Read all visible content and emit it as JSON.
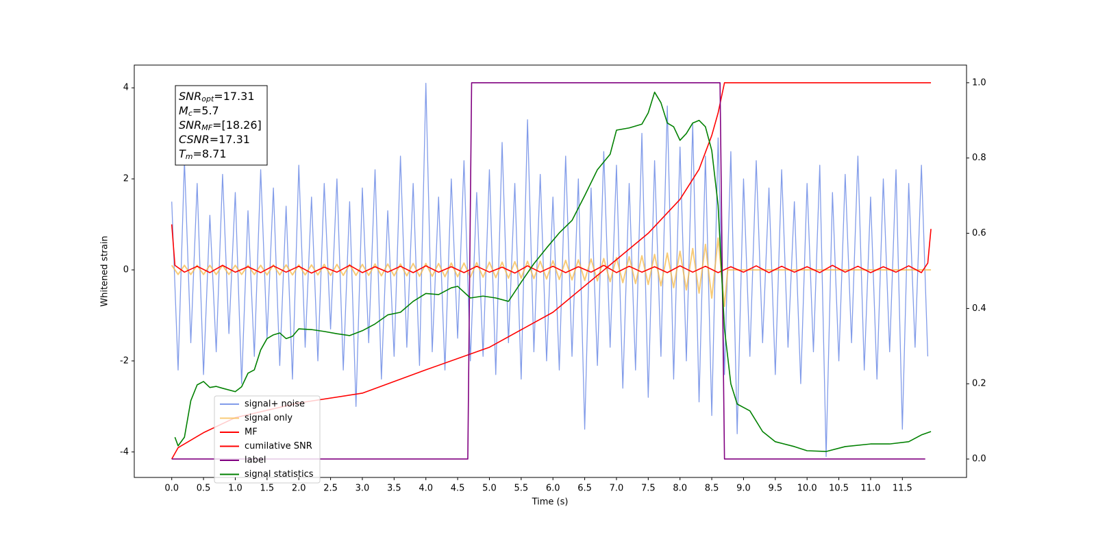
{
  "chart_data": {
    "type": "line",
    "xlabel": "Time (s)",
    "ylabel": "Whitened strain",
    "xlim": [
      -0.59,
      12.51
    ],
    "ylim": [
      -4.56,
      4.5
    ],
    "y2lim": [
      -0.049,
      1.047
    ],
    "xticks": [
      {
        "value": 0,
        "label": "0.0"
      },
      0.5,
      {
        "value": 1,
        "label": "1.0"
      },
      1.5,
      {
        "value": 2,
        "label": "2.0"
      },
      2.5,
      {
        "value": 3,
        "label": "3.0"
      },
      3.5,
      {
        "value": 4,
        "label": "4.0"
      },
      4.5,
      {
        "value": 5,
        "label": "5.0"
      },
      5.5,
      {
        "value": 6,
        "label": "6.0"
      },
      6.5,
      {
        "value": 7,
        "label": "7.0"
      },
      7.5,
      {
        "value": 8,
        "label": "8.0"
      },
      8.5,
      {
        "value": 9,
        "label": "9.0"
      },
      9.5,
      {
        "value": 10,
        "label": "10.0"
      },
      10.5,
      {
        "value": 11,
        "label": "11.0"
      },
      11.5
    ],
    "yticks": [
      -4,
      -2,
      0,
      2,
      4
    ],
    "y2ticks": [
      {
        "value": 0,
        "label": "0.0"
      },
      0.2,
      0.4,
      0.6,
      0.8,
      {
        "value": 1,
        "label": "1.0"
      }
    ],
    "legend": "lower left",
    "annotations": [
      {
        "base": "SNR",
        "sub": "opt",
        "text": "=17.31"
      },
      {
        "base": "M",
        "sub": "c",
        "text": "=5.7"
      },
      {
        "base": "SNR",
        "sub": "MF",
        "text": "=[18.26]"
      },
      {
        "base": "CSNR",
        "text": "=17.31"
      },
      {
        "base": "T",
        "sub": "m",
        "text": "=8.71"
      }
    ],
    "series": [
      {
        "name": "signal+ noise",
        "color": "#7a96e8",
        "x": [
          0,
          0.1,
          0.2,
          0.3,
          0.4,
          0.5,
          0.6,
          0.7,
          0.8,
          0.9,
          1,
          1.1,
          1.2,
          1.3,
          1.4,
          1.5,
          1.6,
          1.7,
          1.8,
          1.9,
          2,
          2.1,
          2.2,
          2.3,
          2.4,
          2.5,
          2.6,
          2.7,
          2.8,
          2.9,
          3,
          3.1,
          3.2,
          3.3,
          3.4,
          3.5,
          3.6,
          3.7,
          3.8,
          3.9,
          4,
          4.1,
          4.2,
          4.3,
          4.4,
          4.5,
          4.6,
          4.7,
          4.8,
          4.9,
          5,
          5.1,
          5.2,
          5.3,
          5.4,
          5.5,
          5.6,
          5.7,
          5.8,
          5.9,
          6,
          6.1,
          6.2,
          6.3,
          6.4,
          6.5,
          6.6,
          6.7,
          6.8,
          6.9,
          7,
          7.1,
          7.2,
          7.3,
          7.4,
          7.5,
          7.6,
          7.7,
          7.8,
          7.9,
          8,
          8.1,
          8.2,
          8.3,
          8.4,
          8.5,
          8.6,
          8.7,
          8.8,
          8.9,
          9,
          9.1,
          9.2,
          9.3,
          9.4,
          9.5,
          9.6,
          9.7,
          9.8,
          9.9,
          10,
          10.1,
          10.2,
          10.3,
          10.4,
          10.5,
          10.6,
          10.7,
          10.8,
          10.9,
          11,
          11.1,
          11.2,
          11.3,
          11.4,
          11.5,
          11.6,
          11.7,
          11.8,
          11.9
        ],
        "values": [
          1.5,
          -2.2,
          2.4,
          -1.6,
          1.9,
          -2.3,
          1.2,
          -1.8,
          2.1,
          -1.4,
          1.7,
          -2.5,
          1.3,
          -1.9,
          2.2,
          -1.5,
          1.8,
          -2.1,
          1.4,
          -2.4,
          2.3,
          -1.7,
          1.6,
          -2.0,
          1.9,
          -1.3,
          2.0,
          -2.2,
          1.5,
          -3.0,
          1.8,
          -1.6,
          2.2,
          -2.4,
          1.3,
          -1.9,
          2.5,
          -1.7,
          1.9,
          -2.1,
          4.1,
          -1.8,
          1.6,
          -2.2,
          2.0,
          -1.5,
          2.4,
          -2.0,
          1.7,
          -1.9,
          2.2,
          -2.3,
          2.8,
          -1.6,
          1.9,
          -2.4,
          3.3,
          -1.8,
          2.1,
          -2.0,
          1.6,
          -2.2,
          2.5,
          -1.9,
          2.0,
          -3.5,
          1.8,
          -2.1,
          2.6,
          -1.7,
          2.3,
          -2.6,
          1.9,
          -2.2,
          3.0,
          -2.8,
          2.4,
          -1.9,
          3.6,
          -2.4,
          2.7,
          -2.0,
          3.2,
          -2.9,
          2.5,
          -3.2,
          2.9,
          -2.3,
          2.6,
          -3.6,
          2.0,
          -1.9,
          2.4,
          -1.6,
          1.8,
          -2.3,
          2.2,
          -1.7,
          1.5,
          -2.5,
          1.9,
          -1.8,
          2.3,
          -4.1,
          1.7,
          -2.0,
          2.1,
          -1.6,
          2.5,
          -2.2,
          1.6,
          -2.4,
          2.0,
          -1.8,
          2.2,
          -3.5,
          1.9,
          -1.7,
          2.3,
          -1.9
        ]
      },
      {
        "name": "signal only",
        "color": "#f5b94a",
        "x": [
          0,
          0.1,
          0.2,
          0.3,
          0.4,
          0.5,
          0.6,
          0.7,
          0.8,
          0.9,
          1,
          1.1,
          1.2,
          1.3,
          1.4,
          1.5,
          1.6,
          1.7,
          1.8,
          1.9,
          2,
          2.1,
          2.2,
          2.3,
          2.4,
          2.5,
          2.6,
          2.7,
          2.8,
          2.9,
          3,
          3.1,
          3.2,
          3.3,
          3.4,
          3.5,
          3.6,
          3.7,
          3.8,
          3.9,
          4,
          4.1,
          4.2,
          4.3,
          4.4,
          4.5,
          4.6,
          4.7,
          4.8,
          4.9,
          5,
          5.1,
          5.2,
          5.3,
          5.4,
          5.5,
          5.6,
          5.7,
          5.8,
          5.9,
          6,
          6.1,
          6.2,
          6.3,
          6.4,
          6.5,
          6.6,
          6.7,
          6.8,
          6.9,
          7,
          7.1,
          7.2,
          7.3,
          7.4,
          7.5,
          7.6,
          7.7,
          7.8,
          7.9,
          8,
          8.1,
          8.2,
          8.3,
          8.4,
          8.5,
          8.6,
          8.7,
          8.75,
          11.95
        ],
        "values": [
          0.1,
          -0.1,
          0.1,
          -0.1,
          0.1,
          -0.1,
          0.1,
          -0.1,
          0.1,
          -0.1,
          0.1,
          -0.1,
          0.1,
          -0.1,
          0.1,
          -0.11,
          0.11,
          -0.11,
          0.11,
          -0.11,
          0.11,
          -0.11,
          0.11,
          -0.11,
          0.12,
          -0.12,
          0.12,
          -0.12,
          0.12,
          -0.12,
          0.12,
          -0.12,
          0.13,
          -0.13,
          0.13,
          -0.13,
          0.13,
          -0.13,
          0.14,
          -0.14,
          0.14,
          -0.14,
          0.14,
          -0.15,
          0.15,
          -0.15,
          0.15,
          -0.16,
          0.16,
          -0.16,
          0.17,
          -0.17,
          0.17,
          -0.18,
          0.18,
          -0.18,
          0.19,
          -0.19,
          0.19,
          -0.2,
          0.2,
          -0.21,
          0.21,
          -0.22,
          0.22,
          -0.23,
          0.24,
          -0.24,
          0.25,
          -0.26,
          0.27,
          -0.28,
          0.29,
          -0.3,
          0.31,
          -0.32,
          0.34,
          -0.35,
          0.37,
          -0.39,
          0.41,
          -0.44,
          0.47,
          -0.51,
          0.56,
          -0.62,
          0.7,
          -0.8,
          0,
          0
        ]
      },
      {
        "name": "MF",
        "color": "#ff0000",
        "x": [
          0,
          0.05,
          0.2,
          0.4,
          0.6,
          0.8,
          1,
          1.2,
          1.4,
          1.6,
          1.8,
          2,
          2.2,
          2.4,
          2.6,
          2.8,
          3,
          3.2,
          3.4,
          3.6,
          3.8,
          4,
          4.2,
          4.4,
          4.6,
          4.8,
          5,
          5.2,
          5.4,
          5.6,
          5.8,
          6,
          6.2,
          6.4,
          6.6,
          6.8,
          7,
          7.2,
          7.4,
          7.6,
          7.8,
          8,
          8.2,
          8.4,
          8.6,
          8.8,
          9,
          9.2,
          9.4,
          9.6,
          9.8,
          10,
          10.2,
          10.4,
          10.6,
          10.8,
          11,
          11.2,
          11.4,
          11.6,
          11.8,
          11.9,
          11.95
        ],
        "values": [
          1.0,
          0.1,
          -0.05,
          0.08,
          -0.06,
          0.1,
          -0.05,
          0.07,
          -0.06,
          0.09,
          -0.05,
          0.08,
          -0.07,
          0.06,
          -0.05,
          0.1,
          -0.06,
          0.07,
          -0.05,
          0.08,
          -0.06,
          0.09,
          -0.05,
          0.07,
          -0.06,
          0.08,
          -0.05,
          0.06,
          -0.07,
          0.09,
          -0.05,
          0.08,
          -0.06,
          0.07,
          -0.05,
          0.1,
          -0.06,
          0.08,
          -0.05,
          0.07,
          -0.06,
          0.09,
          -0.05,
          0.08,
          -0.06,
          0.07,
          -0.05,
          0.09,
          -0.06,
          0.08,
          -0.05,
          0.07,
          -0.06,
          0.1,
          -0.05,
          0.08,
          -0.06,
          0.07,
          -0.05,
          0.09,
          -0.06,
          0.15,
          0.9
        ]
      },
      {
        "name": "cumilative SNR",
        "color": "#ff0000",
        "axis": "y2",
        "x": [
          0,
          0.1,
          0.5,
          1,
          2,
          3,
          4,
          5,
          6,
          7,
          7.5,
          8,
          8.3,
          8.5,
          8.6,
          8.7,
          11.95
        ],
        "values": [
          0,
          0.03,
          0.07,
          0.11,
          0.149,
          0.175,
          0.237,
          0.297,
          0.39,
          0.53,
          0.6,
          0.69,
          0.77,
          0.86,
          0.92,
          1.0,
          1.0
        ]
      },
      {
        "name": "label",
        "color": "#800080",
        "axis": "y2",
        "x": [
          0,
          4.66,
          4.72,
          8.63,
          8.7,
          11.86
        ],
        "values": [
          0,
          0,
          1,
          1,
          0,
          0
        ]
      },
      {
        "name": "signal statistics",
        "color": "#008000",
        "axis": "y2",
        "x": [
          0.05,
          0.1,
          0.2,
          0.3,
          0.4,
          0.5,
          0.6,
          0.7,
          0.8,
          1,
          1.1,
          1.2,
          1.3,
          1.4,
          1.5,
          1.6,
          1.7,
          1.8,
          1.9,
          2,
          2.2,
          2.4,
          2.6,
          2.8,
          3,
          3.2,
          3.4,
          3.6,
          3.8,
          4,
          4.2,
          4.4,
          4.5,
          4.7,
          4.9,
          5.1,
          5.3,
          5.5,
          5.7,
          5.9,
          6.1,
          6.3,
          6.5,
          6.7,
          6.9,
          7,
          7.2,
          7.4,
          7.5,
          7.6,
          7.7,
          7.8,
          7.9,
          8,
          8.1,
          8.2,
          8.3,
          8.4,
          8.5,
          8.6,
          8.7,
          8.8,
          8.9,
          9,
          9.1,
          9.3,
          9.5,
          9.8,
          10,
          10.3,
          10.6,
          11,
          11.3,
          11.6,
          11.8,
          11.95
        ],
        "values": [
          0.058,
          0.035,
          0.058,
          0.155,
          0.197,
          0.206,
          0.19,
          0.193,
          0.188,
          0.179,
          0.192,
          0.228,
          0.237,
          0.29,
          0.32,
          0.33,
          0.335,
          0.32,
          0.326,
          0.346,
          0.344,
          0.339,
          0.333,
          0.328,
          0.341,
          0.359,
          0.383,
          0.39,
          0.419,
          0.44,
          0.437,
          0.455,
          0.459,
          0.428,
          0.433,
          0.428,
          0.419,
          0.47,
          0.519,
          0.561,
          0.601,
          0.634,
          0.7,
          0.769,
          0.81,
          0.874,
          0.88,
          0.89,
          0.92,
          0.975,
          0.947,
          0.893,
          0.883,
          0.847,
          0.865,
          0.893,
          0.9,
          0.883,
          0.82,
          0.674,
          0.346,
          0.2,
          0.146,
          0.137,
          0.128,
          0.073,
          0.046,
          0.033,
          0.022,
          0.02,
          0.033,
          0.04,
          0.04,
          0.046,
          0.064,
          0.073
        ]
      }
    ]
  }
}
